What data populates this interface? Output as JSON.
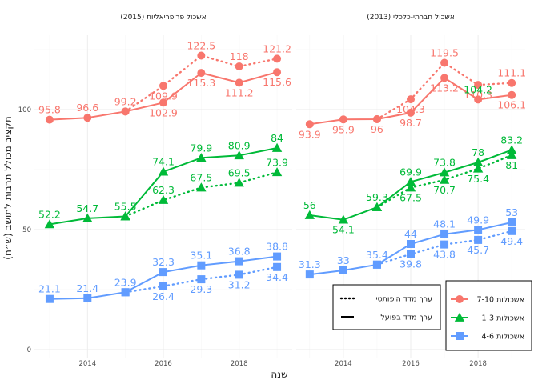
{
  "chart_data": {
    "type": "line",
    "ylabel": "תקציב מכולל תרבות לתושב (ש״ח)",
    "xlabel": "שנה",
    "ylim": [
      0,
      130
    ],
    "yticks": [
      0,
      50,
      100
    ],
    "xlim": [
      2012.6,
      2019.4
    ],
    "xticks": [
      2014,
      2016,
      2018
    ],
    "grid": true,
    "legend_placement": "bottom-right",
    "linetype_legend": [
      {
        "key": "hypothetical",
        "label": "ערך מדד היפותטי",
        "dash": "dotted"
      },
      {
        "key": "actual",
        "label": "ערך מדד בפועל",
        "dash": "solid"
      }
    ],
    "groups": [
      {
        "key": "g710",
        "label": "אשכולות 7-10",
        "color": "#F8766D",
        "shape": "circle"
      },
      {
        "key": "g13",
        "label": "אשכולות 1-3",
        "color": "#00BA38",
        "shape": "triangle"
      },
      {
        "key": "g46",
        "label": "אשכולות 4-6",
        "color": "#619CFF",
        "shape": "square"
      }
    ],
    "facets": [
      {
        "title": "אשכול פריפריאליות (2015)",
        "series": [
          {
            "group": "g710",
            "type": "actual",
            "x": [
              2013,
              2014,
              2015,
              2016,
              2017,
              2018,
              2019
            ],
            "values": [
              95.8,
              96.6,
              99.2,
              102.9,
              115.3,
              111.2,
              115.6
            ]
          },
          {
            "group": "g710",
            "type": "hypothetical",
            "x": [
              2015,
              2016,
              2017,
              2018,
              2019
            ],
            "values": [
              99.2,
              109.9,
              122.5,
              118,
              121.2
            ]
          },
          {
            "group": "g13",
            "type": "actual",
            "x": [
              2013,
              2014,
              2015,
              2016,
              2017,
              2018,
              2019
            ],
            "values": [
              52.2,
              54.7,
              55.5,
              74.1,
              79.9,
              80.9,
              84
            ]
          },
          {
            "group": "g13",
            "type": "hypothetical",
            "x": [
              2015,
              2016,
              2017,
              2018,
              2019
            ],
            "values": [
              55.5,
              62.3,
              67.5,
              69.5,
              73.9
            ]
          },
          {
            "group": "g46",
            "type": "actual",
            "x": [
              2013,
              2014,
              2015,
              2016,
              2017,
              2018,
              2019
            ],
            "values": [
              21.1,
              21.4,
              23.9,
              32.3,
              35.1,
              36.8,
              38.8
            ]
          },
          {
            "group": "g46",
            "type": "hypothetical",
            "x": [
              2015,
              2016,
              2017,
              2018,
              2019
            ],
            "values": [
              23.9,
              26.4,
              29.3,
              31.2,
              34.4
            ]
          }
        ],
        "labels": [
          {
            "group": "g710",
            "x": 2013,
            "y": 95.8,
            "text": "95.8",
            "pos": "above"
          },
          {
            "group": "g710",
            "x": 2014,
            "y": 96.6,
            "text": "96.6",
            "pos": "above"
          },
          {
            "group": "g710",
            "x": 2015,
            "y": 99.2,
            "text": "99.2",
            "pos": "above"
          },
          {
            "group": "g710",
            "x": 2016,
            "y": 102.9,
            "text": "102.9",
            "pos": "below"
          },
          {
            "group": "g710",
            "x": 2016,
            "y": 109.9,
            "text": "109.9",
            "pos": "below"
          },
          {
            "group": "g710",
            "x": 2017,
            "y": 115.3,
            "text": "115.3",
            "pos": "below"
          },
          {
            "group": "g710",
            "x": 2017,
            "y": 122.5,
            "text": "122.5",
            "pos": "above"
          },
          {
            "group": "g710",
            "x": 2018,
            "y": 111.2,
            "text": "111.2",
            "pos": "below"
          },
          {
            "group": "g710",
            "x": 2018,
            "y": 118,
            "text": "118",
            "pos": "above"
          },
          {
            "group": "g710",
            "x": 2019,
            "y": 115.6,
            "text": "115.6",
            "pos": "below"
          },
          {
            "group": "g710",
            "x": 2019,
            "y": 121.2,
            "text": "121.2",
            "pos": "above"
          },
          {
            "group": "g13",
            "x": 2013,
            "y": 52.2,
            "text": "52.2",
            "pos": "above"
          },
          {
            "group": "g13",
            "x": 2014,
            "y": 54.7,
            "text": "54.7",
            "pos": "above"
          },
          {
            "group": "g13",
            "x": 2015,
            "y": 55.5,
            "text": "55.5",
            "pos": "above"
          },
          {
            "group": "g13",
            "x": 2016,
            "y": 74.1,
            "text": "74.1",
            "pos": "above"
          },
          {
            "group": "g13",
            "x": 2016,
            "y": 62.3,
            "text": "62.3",
            "pos": "above"
          },
          {
            "group": "g13",
            "x": 2017,
            "y": 79.9,
            "text": "79.9",
            "pos": "above"
          },
          {
            "group": "g13",
            "x": 2017,
            "y": 67.5,
            "text": "67.5",
            "pos": "above"
          },
          {
            "group": "g13",
            "x": 2018,
            "y": 80.9,
            "text": "80.9",
            "pos": "above"
          },
          {
            "group": "g13",
            "x": 2018,
            "y": 69.5,
            "text": "69.5",
            "pos": "above"
          },
          {
            "group": "g13",
            "x": 2019,
            "y": 84,
            "text": "84",
            "pos": "above"
          },
          {
            "group": "g13",
            "x": 2019,
            "y": 73.9,
            "text": "73.9",
            "pos": "above"
          },
          {
            "group": "g46",
            "x": 2013,
            "y": 21.1,
            "text": "21.1",
            "pos": "above"
          },
          {
            "group": "g46",
            "x": 2014,
            "y": 21.4,
            "text": "21.4",
            "pos": "above"
          },
          {
            "group": "g46",
            "x": 2015,
            "y": 23.9,
            "text": "23.9",
            "pos": "above"
          },
          {
            "group": "g46",
            "x": 2016,
            "y": 32.3,
            "text": "32.3",
            "pos": "above"
          },
          {
            "group": "g46",
            "x": 2016,
            "y": 26.4,
            "text": "26.4",
            "pos": "below"
          },
          {
            "group": "g46",
            "x": 2017,
            "y": 35.1,
            "text": "35.1",
            "pos": "above"
          },
          {
            "group": "g46",
            "x": 2017,
            "y": 29.3,
            "text": "29.3",
            "pos": "below"
          },
          {
            "group": "g46",
            "x": 2018,
            "y": 36.8,
            "text": "36.8",
            "pos": "above"
          },
          {
            "group": "g46",
            "x": 2018,
            "y": 31.2,
            "text": "31.2",
            "pos": "below"
          },
          {
            "group": "g46",
            "x": 2019,
            "y": 38.8,
            "text": "38.8",
            "pos": "above"
          },
          {
            "group": "g46",
            "x": 2019,
            "y": 34.4,
            "text": "34.4",
            "pos": "below"
          }
        ]
      },
      {
        "title": "אשכול חברתי-כלכלי (2013)",
        "series": [
          {
            "group": "g710",
            "type": "actual",
            "x": [
              2013,
              2014,
              2015,
              2016,
              2017,
              2018,
              2019
            ],
            "values": [
              93.9,
              95.9,
              96,
              98.7,
              113.2,
              104.2,
              106.1
            ]
          },
          {
            "group": "g710",
            "type": "hypothetical",
            "x": [
              2015,
              2016,
              2017,
              2018,
              2019
            ],
            "values": [
              96,
              104.3,
              119.5,
              110.3,
              111.1
            ]
          },
          {
            "group": "g13",
            "type": "actual",
            "x": [
              2013,
              2014,
              2015,
              2016,
              2017,
              2018,
              2019
            ],
            "values": [
              56,
              54.1,
              59.3,
              69.9,
              73.8,
              78,
              83.2
            ]
          },
          {
            "group": "g13",
            "type": "hypothetical",
            "x": [
              2015,
              2016,
              2017,
              2018,
              2019
            ],
            "values": [
              59.3,
              67.5,
              70.7,
              75.4,
              81
            ]
          },
          {
            "group": "g46",
            "type": "actual",
            "x": [
              2013,
              2014,
              2015,
              2016,
              2017,
              2018,
              2019
            ],
            "values": [
              31.3,
              33,
              35.4,
              44,
              48.1,
              49.9,
              53
            ]
          },
          {
            "group": "g46",
            "type": "hypothetical",
            "x": [
              2015,
              2016,
              2017,
              2018,
              2019
            ],
            "values": [
              35.4,
              39.8,
              43.8,
              45.7,
              49.4
            ]
          }
        ],
        "labels": [
          {
            "group": "g710",
            "x": 2013,
            "y": 93.9,
            "text": "93.9",
            "pos": "below"
          },
          {
            "group": "g710",
            "x": 2014,
            "y": 95.9,
            "text": "95.9",
            "pos": "below"
          },
          {
            "group": "g710",
            "x": 2015,
            "y": 96,
            "text": "96",
            "pos": "below"
          },
          {
            "group": "g710",
            "x": 2016,
            "y": 104.3,
            "text": "104.3",
            "pos": "below"
          },
          {
            "group": "g710",
            "x": 2016,
            "y": 98.7,
            "text": "98.7",
            "pos": "below"
          },
          {
            "group": "g710",
            "x": 2017,
            "y": 119.5,
            "text": "119.5",
            "pos": "above"
          },
          {
            "group": "g710",
            "x": 2017,
            "y": 113.2,
            "text": "113.2",
            "pos": "below"
          },
          {
            "group": "g710",
            "x": 2018,
            "y": 110.3,
            "text": "110.3",
            "pos": "below"
          },
          {
            "group": "g710",
            "x": 2019,
            "y": 111.1,
            "text": "111.1",
            "pos": "above"
          },
          {
            "group": "g710",
            "x": 2019,
            "y": 106.1,
            "text": "106.1",
            "pos": "below"
          },
          {
            "group": "g13",
            "x": 2013,
            "y": 56,
            "text": "56",
            "pos": "above"
          },
          {
            "group": "g13",
            "x": 2014,
            "y": 54.1,
            "text": "54.1",
            "pos": "below"
          },
          {
            "group": "g13",
            "x": 2015,
            "y": 59.3,
            "text": "59.3",
            "pos": "above"
          },
          {
            "group": "g13",
            "x": 2016,
            "y": 69.9,
            "text": "69.9",
            "pos": "above"
          },
          {
            "group": "g13",
            "x": 2016,
            "y": 67.5,
            "text": "67.5",
            "pos": "below"
          },
          {
            "group": "g13",
            "x": 2017,
            "y": 73.8,
            "text": "73.8",
            "pos": "above"
          },
          {
            "group": "g13",
            "x": 2017,
            "y": 70.7,
            "text": "70.7",
            "pos": "below"
          },
          {
            "group": "g13",
            "x": 2018,
            "y": 104.2,
            "text": "104.2",
            "pos": "above"
          },
          {
            "group": "g13",
            "x": 2018,
            "y": 78,
            "text": "78",
            "pos": "above"
          },
          {
            "group": "g13",
            "x": 2018,
            "y": 75.4,
            "text": "75.4",
            "pos": "below"
          },
          {
            "group": "g13",
            "x": 2019,
            "y": 83.2,
            "text": "83.2",
            "pos": "above"
          },
          {
            "group": "g13",
            "x": 2019,
            "y": 81,
            "text": "81",
            "pos": "below"
          },
          {
            "group": "g46",
            "x": 2013,
            "y": 31.3,
            "text": "31.3",
            "pos": "above"
          },
          {
            "group": "g46",
            "x": 2014,
            "y": 33,
            "text": "33",
            "pos": "above"
          },
          {
            "group": "g46",
            "x": 2015,
            "y": 35.4,
            "text": "35.4",
            "pos": "above"
          },
          {
            "group": "g46",
            "x": 2016,
            "y": 44,
            "text": "44",
            "pos": "above"
          },
          {
            "group": "g46",
            "x": 2016,
            "y": 39.8,
            "text": "39.8",
            "pos": "below"
          },
          {
            "group": "g46",
            "x": 2017,
            "y": 48.1,
            "text": "48.1",
            "pos": "above"
          },
          {
            "group": "g46",
            "x": 2017,
            "y": 43.8,
            "text": "43.8",
            "pos": "below"
          },
          {
            "group": "g46",
            "x": 2018,
            "y": 49.9,
            "text": "49.9",
            "pos": "above"
          },
          {
            "group": "g46",
            "x": 2018,
            "y": 45.7,
            "text": "45.7",
            "pos": "below"
          },
          {
            "group": "g46",
            "x": 2019,
            "y": 53,
            "text": "53",
            "pos": "above"
          },
          {
            "group": "g46",
            "x": 2019,
            "y": 49.4,
            "text": "49.4",
            "pos": "below"
          }
        ]
      }
    ]
  }
}
